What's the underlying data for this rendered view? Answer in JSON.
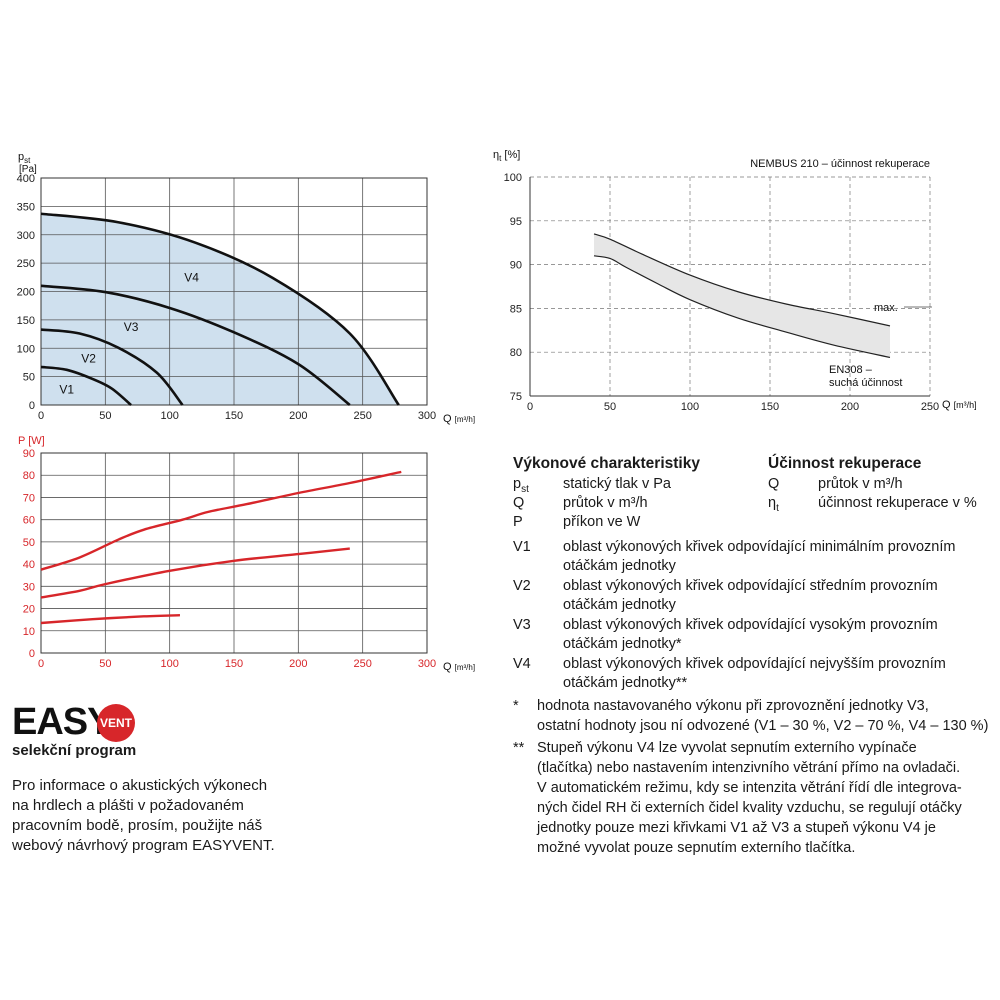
{
  "chart_data": [
    {
      "type": "line",
      "name": "pressure",
      "ylabel": "p",
      "ylabel_sub": "st",
      "yunit": "[Pa]",
      "xlabel": "Q",
      "xunit": "[m³/h]",
      "xlim": [
        0,
        300
      ],
      "ylim": [
        0,
        400
      ],
      "xticks": [
        "0",
        "50",
        "100",
        "150",
        "200",
        "250",
        "300"
      ],
      "yticks": [
        "0",
        "50",
        "100",
        "150",
        "200",
        "250",
        "300",
        "350",
        "400"
      ],
      "grid": true,
      "fill": "#cfe0ee",
      "series": [
        {
          "name": "V1",
          "label_at": [
            20,
            20
          ],
          "points": [
            [
              0,
              67
            ],
            [
              20,
              62
            ],
            [
              40,
              46
            ],
            [
              55,
              29
            ],
            [
              70,
              0
            ]
          ]
        },
        {
          "name": "V2",
          "label_at": [
            37,
            75
          ],
          "points": [
            [
              0,
              133
            ],
            [
              30,
              126
            ],
            [
              60,
              101
            ],
            [
              90,
              57
            ],
            [
              110,
              0
            ]
          ]
        },
        {
          "name": "V3",
          "label_at": [
            70,
            130
          ],
          "points": [
            [
              0,
              210
            ],
            [
              50,
              199
            ],
            [
              100,
              171
            ],
            [
              150,
              128
            ],
            [
              200,
              72
            ],
            [
              240,
              0
            ]
          ]
        },
        {
          "name": "V4",
          "label_at": [
            117,
            218
          ],
          "points": [
            [
              0,
              337
            ],
            [
              60,
              322
            ],
            [
              120,
              286
            ],
            [
              180,
              224
            ],
            [
              240,
              126
            ],
            [
              278,
              0
            ]
          ]
        }
      ]
    },
    {
      "type": "line",
      "name": "power",
      "ylabel": "P [W]",
      "xlabel": "Q",
      "xunit": "[m³/h]",
      "xlim": [
        0,
        300
      ],
      "ylim": [
        0,
        90
      ],
      "xticks": [
        "0",
        "50",
        "100",
        "150",
        "200",
        "250",
        "300"
      ],
      "yticks": [
        "0",
        "10",
        "20",
        "30",
        "40",
        "50",
        "60",
        "70",
        "80",
        "90"
      ],
      "grid": true,
      "color": "#d7262a",
      "series": [
        {
          "points": [
            [
              0,
              13.5
            ],
            [
              40,
              15.2
            ],
            [
              80,
              16.5
            ],
            [
              108,
              17
            ]
          ]
        },
        {
          "points": [
            [
              0,
              25
            ],
            [
              30,
              28
            ],
            [
              50,
              31
            ],
            [
              100,
              37
            ],
            [
              150,
              41.5
            ],
            [
              200,
              44.5
            ],
            [
              240,
              47
            ]
          ]
        },
        {
          "points": [
            [
              0,
              37.5
            ],
            [
              30,
              43
            ],
            [
              60,
              51
            ],
            [
              80,
              55.5
            ],
            [
              110,
              60
            ],
            [
              130,
              63.5
            ],
            [
              160,
              67
            ],
            [
              200,
              72
            ],
            [
              240,
              76.5
            ],
            [
              280,
              81.5
            ]
          ]
        }
      ]
    },
    {
      "type": "area",
      "name": "efficiency",
      "title": "NEMBUS 210 – účinnost rekuperace",
      "ylabel": "η",
      "ylabel_sub": "t",
      "yunit": "[%]",
      "xlabel": "Q",
      "xunit": "[m³/h]",
      "xlim": [
        0,
        250
      ],
      "ylim": [
        75,
        100
      ],
      "xticks": [
        "0",
        "50",
        "100",
        "150",
        "200",
        "250"
      ],
      "yticks": [
        "75",
        "80",
        "85",
        "90",
        "95",
        "100"
      ],
      "grid": true,
      "fill": "#e6e6e6",
      "upper": {
        "label": "max.",
        "points": [
          [
            40,
            93.5
          ],
          [
            50,
            92.9
          ],
          [
            70,
            91.2
          ],
          [
            100,
            88.8
          ],
          [
            130,
            86.9
          ],
          [
            160,
            85.5
          ],
          [
            190,
            84.4
          ],
          [
            225,
            83
          ]
        ]
      },
      "lower": {
        "label": "EN308 –\nsuchá účinnost",
        "points": [
          [
            40,
            91
          ],
          [
            50,
            90.7
          ],
          [
            60,
            89.7
          ],
          [
            80,
            87.8
          ],
          [
            100,
            86
          ],
          [
            130,
            83.9
          ],
          [
            160,
            82.3
          ],
          [
            190,
            80.8
          ],
          [
            225,
            79.4
          ]
        ]
      }
    }
  ],
  "legend": {
    "perf_heading": "Výkonové charakteristiky",
    "eff_heading": "Účinnost rekuperace",
    "perf_rows": [
      {
        "sym": "p",
        "sub": "st",
        "desc": "statický tlak v Pa"
      },
      {
        "sym": "Q",
        "sub": "",
        "desc": "průtok v m³/h"
      },
      {
        "sym": "P",
        "sub": "",
        "desc": "příkon ve W"
      }
    ],
    "eff_rows": [
      {
        "sym": "Q",
        "sub": "",
        "desc": "průtok v m³/h"
      },
      {
        "sym": "η",
        "sub": "t",
        "desc": "účinnost rekuperace v %"
      }
    ],
    "v_rows": [
      {
        "sym": "V1",
        "line1": "oblast výkonových křivek odpovídající minimálním provozním",
        "line2": "otáčkám jednotky"
      },
      {
        "sym": "V2",
        "line1": "oblast výkonových křivek odpovídající středním provozním",
        "line2": "otáčkám jednotky"
      },
      {
        "sym": "V3",
        "line1": "oblast výkonových křivek odpovídající vysokým provozním",
        "line2": "otáčkám jednotky*"
      },
      {
        "sym": "V4",
        "line1": "oblast výkonových křivek odpovídající nejvyšším provozním",
        "line2": "otáčkám jednotky**"
      }
    ],
    "notes": [
      {
        "mark": "*",
        "lines": [
          "hodnota nastavovaného výkonu při zprovoznění jednotky V3,",
          "ostatní hodnoty jsou ní odvozené (V1 – 30 %, V2 – 70 %, V4 – 130 %)"
        ]
      },
      {
        "mark": "**",
        "lines": [
          "Stupeň výkonu V4 lze vyvolat sepnutím externího vypínače",
          "(tlačítka) nebo nastavením intenzivního větrání přímo na ovladači.",
          "V automatickém režimu, kdy se intenzita větrání řídí dle integrova-",
          "ných čidel RH či externích čidel kvality vzduchu, se regulují otáčky",
          "jednotky pouze mezi křivkami V1 až V3 a stupeň výkonu V4 je",
          "možné vyvolat pouze sepnutím externího tlačítka."
        ]
      }
    ]
  },
  "brand": {
    "logo_easy": "EASY",
    "logo_vent": "VENT",
    "subtitle": "selekční program",
    "info_lines": [
      "Pro informace o akustických výkonech",
      "na hrdlech a plášti v požadovaném",
      "pracovním bodě, prosím, použijte náš",
      "webový návrhový program EASYVENT."
    ]
  }
}
